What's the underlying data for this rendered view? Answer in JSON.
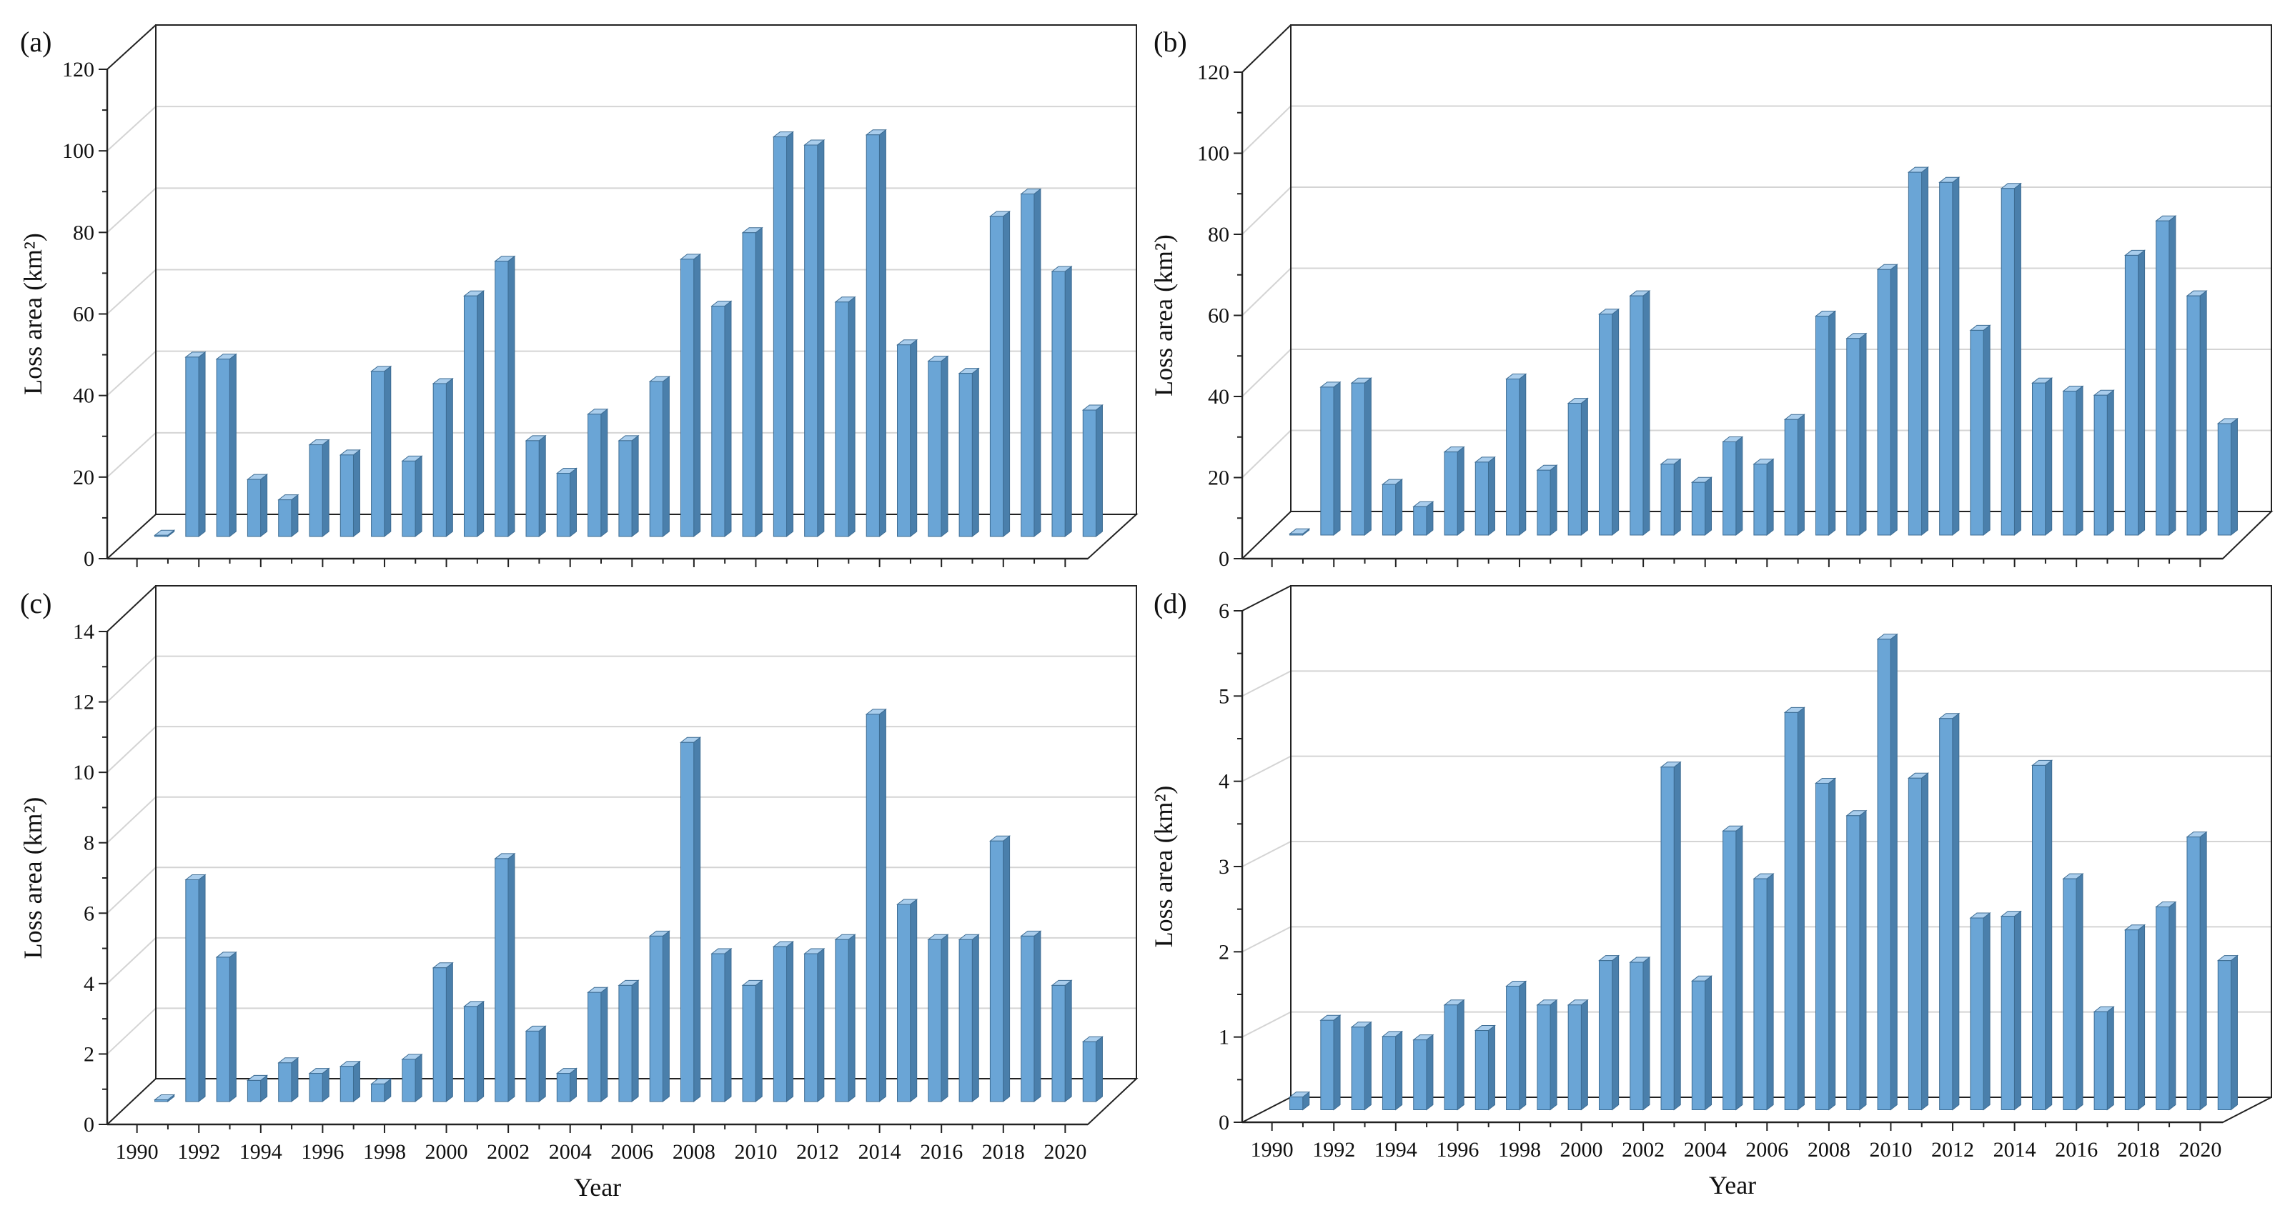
{
  "colors": {
    "bar_front": "#6aa5d6",
    "bar_side": "#4a7fab",
    "bar_top": "#a9cdec",
    "grid": "#d4d4d4",
    "axis": "#222222"
  },
  "chart_data": [
    {
      "type": "bar",
      "panel": "(a)",
      "ylabel": "Loss area (km²)",
      "xlabel": "",
      "ylim": [
        0,
        120
      ],
      "yticks": [
        "0",
        "20",
        "40",
        "60",
        "80",
        "100",
        "120"
      ],
      "categories": [
        "1990",
        "1991",
        "1992",
        "1993",
        "1994",
        "1995",
        "1996",
        "1997",
        "1998",
        "1999",
        "2000",
        "2001",
        "2002",
        "2003",
        "2004",
        "2005",
        "2006",
        "2007",
        "2008",
        "2009",
        "2010",
        "2011",
        "2012",
        "2013",
        "2014",
        "2015",
        "2016",
        "2017",
        "2018",
        "2019",
        "2020"
      ],
      "values": [
        0.3,
        44,
        43.5,
        14,
        9,
        22.5,
        20,
        40.5,
        18.5,
        37.5,
        59,
        67.5,
        23.5,
        15.5,
        30,
        23.5,
        38,
        68,
        56.5,
        74.5,
        98,
        96,
        57.5,
        98.5,
        47,
        43,
        40,
        78.5,
        84,
        65,
        31
      ],
      "xticks": []
    },
    {
      "type": "bar",
      "panel": "(b)",
      "ylabel": "Loss area (km²)",
      "xlabel": "",
      "ylim": [
        0,
        120
      ],
      "yticks": [
        "0",
        "20",
        "40",
        "60",
        "80",
        "100",
        "120"
      ],
      "categories": [
        "1990",
        "1991",
        "1992",
        "1993",
        "1994",
        "1995",
        "1996",
        "1997",
        "1998",
        "1999",
        "2000",
        "2001",
        "2002",
        "2003",
        "2004",
        "2005",
        "2006",
        "2007",
        "2008",
        "2009",
        "2010",
        "2011",
        "2012",
        "2013",
        "2014",
        "2015",
        "2016",
        "2017",
        "2018",
        "2019",
        "2020"
      ],
      "values": [
        0.3,
        36.5,
        37.5,
        12.5,
        7,
        20.5,
        18,
        38.5,
        16,
        32.5,
        54.5,
        59,
        17.5,
        13,
        23,
        17.5,
        28.5,
        54,
        48.5,
        65.5,
        89.5,
        87,
        50.5,
        85.5,
        37.5,
        35.5,
        34.5,
        69,
        77.5,
        59,
        27.5
      ],
      "xticks": []
    },
    {
      "type": "bar",
      "panel": "(c)",
      "ylabel": "Loss area (km²)",
      "xlabel": "Year",
      "ylim": [
        0,
        14
      ],
      "yticks": [
        "0",
        "2",
        "4",
        "6",
        "8",
        "10",
        "12",
        "14"
      ],
      "categories": [
        "1990",
        "1991",
        "1992",
        "1993",
        "1994",
        "1995",
        "1996",
        "1997",
        "1998",
        "1999",
        "2000",
        "2001",
        "2002",
        "2003",
        "2004",
        "2005",
        "2006",
        "2007",
        "2008",
        "2009",
        "2010",
        "2011",
        "2012",
        "2013",
        "2014",
        "2015",
        "2016",
        "2017",
        "2018",
        "2019",
        "2020"
      ],
      "values": [
        0.05,
        6.3,
        4.1,
        0.6,
        1.1,
        0.8,
        1.0,
        0.5,
        1.2,
        3.8,
        2.7,
        6.9,
        2.0,
        0.8,
        3.1,
        3.3,
        4.7,
        10.2,
        4.2,
        3.3,
        4.4,
        4.2,
        4.6,
        11.0,
        5.6,
        4.6,
        4.6,
        7.4,
        4.7,
        3.3,
        1.7
      ],
      "xticks": [
        "1990",
        "1992",
        "1994",
        "1996",
        "1998",
        "2000",
        "2002",
        "2004",
        "2006",
        "2008",
        "2010",
        "2012",
        "2014",
        "2016",
        "2018",
        "2020"
      ]
    },
    {
      "type": "bar",
      "panel": "(d)",
      "ylabel": "Loss area (km²)",
      "xlabel": "Year",
      "ylim": [
        0,
        6
      ],
      "yticks": [
        "0",
        "1",
        "2",
        "3",
        "4",
        "5",
        "6"
      ],
      "categories": [
        "1990",
        "1991",
        "1992",
        "1993",
        "1994",
        "1995",
        "1996",
        "1997",
        "1998",
        "1999",
        "2000",
        "2001",
        "2002",
        "2003",
        "2004",
        "2005",
        "2006",
        "2007",
        "2008",
        "2009",
        "2010",
        "2011",
        "2012",
        "2013",
        "2014",
        "2015",
        "2016",
        "2017",
        "2018",
        "2019",
        "2020"
      ],
      "values": [
        0.15,
        1.05,
        0.97,
        0.86,
        0.82,
        1.23,
        0.93,
        1.45,
        1.23,
        1.23,
        1.75,
        1.73,
        4.02,
        1.51,
        3.27,
        2.71,
        4.66,
        3.83,
        3.45,
        5.52,
        3.89,
        4.59,
        2.25,
        2.27,
        4.04,
        2.71,
        1.15,
        2.11,
        2.38,
        3.2,
        1.75
      ],
      "xticks": [
        "1990",
        "1992",
        "1994",
        "1996",
        "1998",
        "2000",
        "2002",
        "2004",
        "2006",
        "2008",
        "2010",
        "2012",
        "2014",
        "2016",
        "2018",
        "2020"
      ]
    }
  ]
}
